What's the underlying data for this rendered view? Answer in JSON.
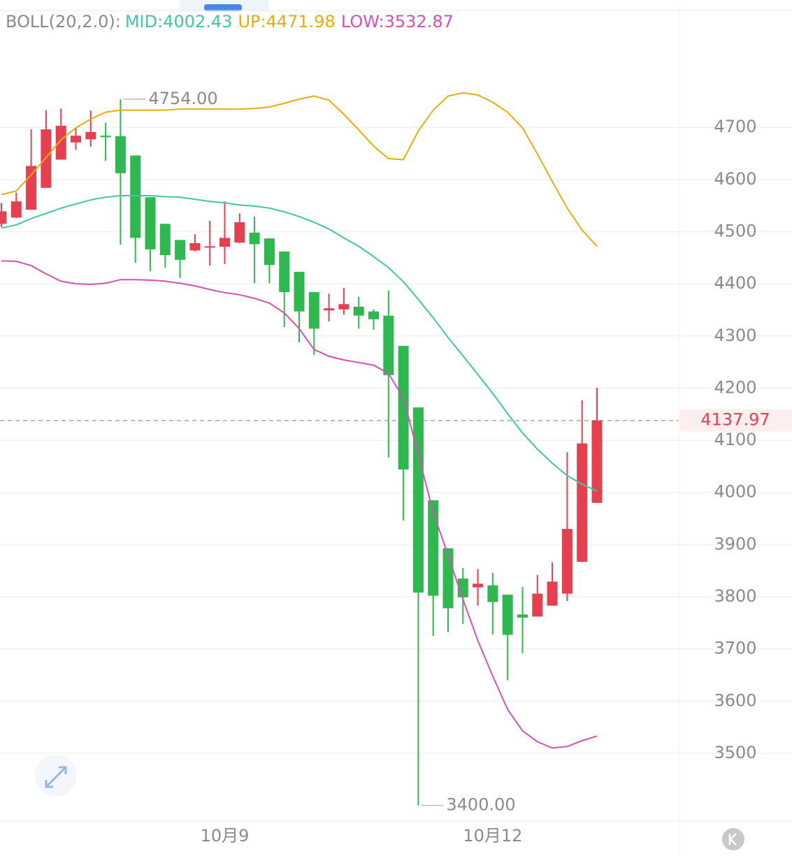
{
  "chart_data": {
    "type": "candlestick",
    "indicator": "BOLL(20,2.0):",
    "categories": [
      null,
      null,
      null,
      null,
      null,
      null,
      null,
      null,
      null,
      null,
      null,
      null,
      null,
      null,
      null,
      "10月9",
      null,
      null,
      null,
      null,
      null,
      null,
      null,
      null,
      null,
      null,
      null,
      null,
      null,
      null,
      null,
      null,
      null,
      "10月12",
      null,
      null,
      null,
      null,
      null,
      null,
      null
    ],
    "open": [
      4515,
      4527,
      4542,
      4584,
      4638,
      4671,
      4677,
      4684,
      4683,
      4646,
      4566,
      4515,
      4484,
      4464,
      4471,
      4471,
      4479,
      4498,
      4487,
      4462,
      4423,
      4384,
      4349,
      4351,
      4356,
      4347,
      4339,
      4281,
      4163,
      3985,
      3893,
      3835,
      3818,
      3822,
      3804,
      3766,
      3762,
      3783,
      3806,
      3867,
      3980
    ],
    "high": [
      4555,
      4575,
      4696,
      4733,
      4736,
      4699,
      4732,
      4709,
      4754,
      4646,
      4566,
      4515,
      4484,
      4495,
      4521,
      4558,
      4535,
      4529,
      4487,
      4462,
      4423,
      4384,
      4381,
      4392,
      4375,
      4351,
      4387,
      4281,
      4163,
      3985,
      3893,
      3855,
      3853,
      3846,
      3804,
      3819,
      3842,
      3866,
      4077,
      4177,
      4201
    ],
    "low": [
      4509,
      4526,
      4542,
      4584,
      4638,
      4657,
      4663,
      4636,
      4475,
      4440,
      4424,
      4431,
      4411,
      4462,
      4435,
      4438,
      4478,
      4401,
      4401,
      4317,
      4288,
      4264,
      4328,
      4341,
      4314,
      4312,
      4067,
      3946,
      3400,
      3725,
      3732,
      3748,
      3783,
      3728,
      3640,
      3692,
      3762,
      3783,
      3792,
      3867,
      3980
    ],
    "close": [
      4539,
      4558,
      4626,
      4696,
      4703,
      4684,
      4691,
      4681,
      4612,
      4488,
      4466,
      4455,
      4446,
      4478,
      4472,
      4488,
      4518,
      4476,
      4436,
      4384,
      4347,
      4314,
      4353,
      4361,
      4339,
      4332,
      4225,
      4044,
      3808,
      3802,
      3778,
      3799,
      3825,
      3790,
      3727,
      3760,
      3806,
      3829,
      3930,
      4094,
      4137.97
    ],
    "up_color": "#e5404f",
    "down_color": "#2fb84f",
    "series": [
      {
        "name": "MID:4002.43",
        "color": "#3cc9a4",
        "values": [
          4507,
          4513,
          4525,
          4535,
          4545,
          4553,
          4561,
          4566,
          4569,
          4569,
          4569,
          4567,
          4566,
          4562,
          4558,
          4555,
          4551,
          4549,
          4545,
          4538,
          4529,
          4518,
          4505,
          4488,
          4472,
          4452,
          4431,
          4404,
          4370,
          4335,
          4297,
          4262,
          4226,
          4190,
          4151,
          4114,
          4083,
          4056,
          4032,
          4016,
          4002.43
        ]
      },
      {
        "name": "UP:4471.98",
        "color": "#e8ac0c",
        "values": [
          4571,
          4578,
          4609,
          4642,
          4676,
          4699,
          4716,
          4729,
          4733,
          4733,
          4733,
          4733,
          4735,
          4735,
          4735,
          4735,
          4735,
          4736,
          4739,
          4746,
          4754,
          4760,
          4752,
          4725,
          4695,
          4664,
          4640,
          4638,
          4693,
          4733,
          4760,
          4766,
          4762,
          4748,
          4729,
          4699,
          4649,
          4596,
          4545,
          4503,
          4471.98
        ]
      },
      {
        "name": "LOW:3532.87",
        "color": "#d550b8",
        "values": [
          4444,
          4443,
          4435,
          4419,
          4405,
          4400,
          4399,
          4401,
          4408,
          4408,
          4407,
          4405,
          4401,
          4396,
          4389,
          4383,
          4379,
          4372,
          4363,
          4344,
          4314,
          4274,
          4261,
          4254,
          4249,
          4244,
          4228,
          4181,
          4073,
          3962,
          3880,
          3795,
          3716,
          3648,
          3584,
          3543,
          3522,
          3510,
          3513,
          3524,
          3532.87
        ]
      }
    ],
    "annotations": [
      {
        "value": 4754,
        "label": "4754.00"
      },
      {
        "value": 3400,
        "label": "3400.00"
      }
    ],
    "last_price": {
      "value": 4137.97,
      "label": "4137.97"
    },
    "ylim": [
      3370,
      4924
    ],
    "yticks": [
      3500,
      3600,
      3700,
      3800,
      3900,
      4000,
      4100,
      4200,
      4300,
      4400,
      4500,
      4600,
      4700
    ],
    "grid": true
  }
}
